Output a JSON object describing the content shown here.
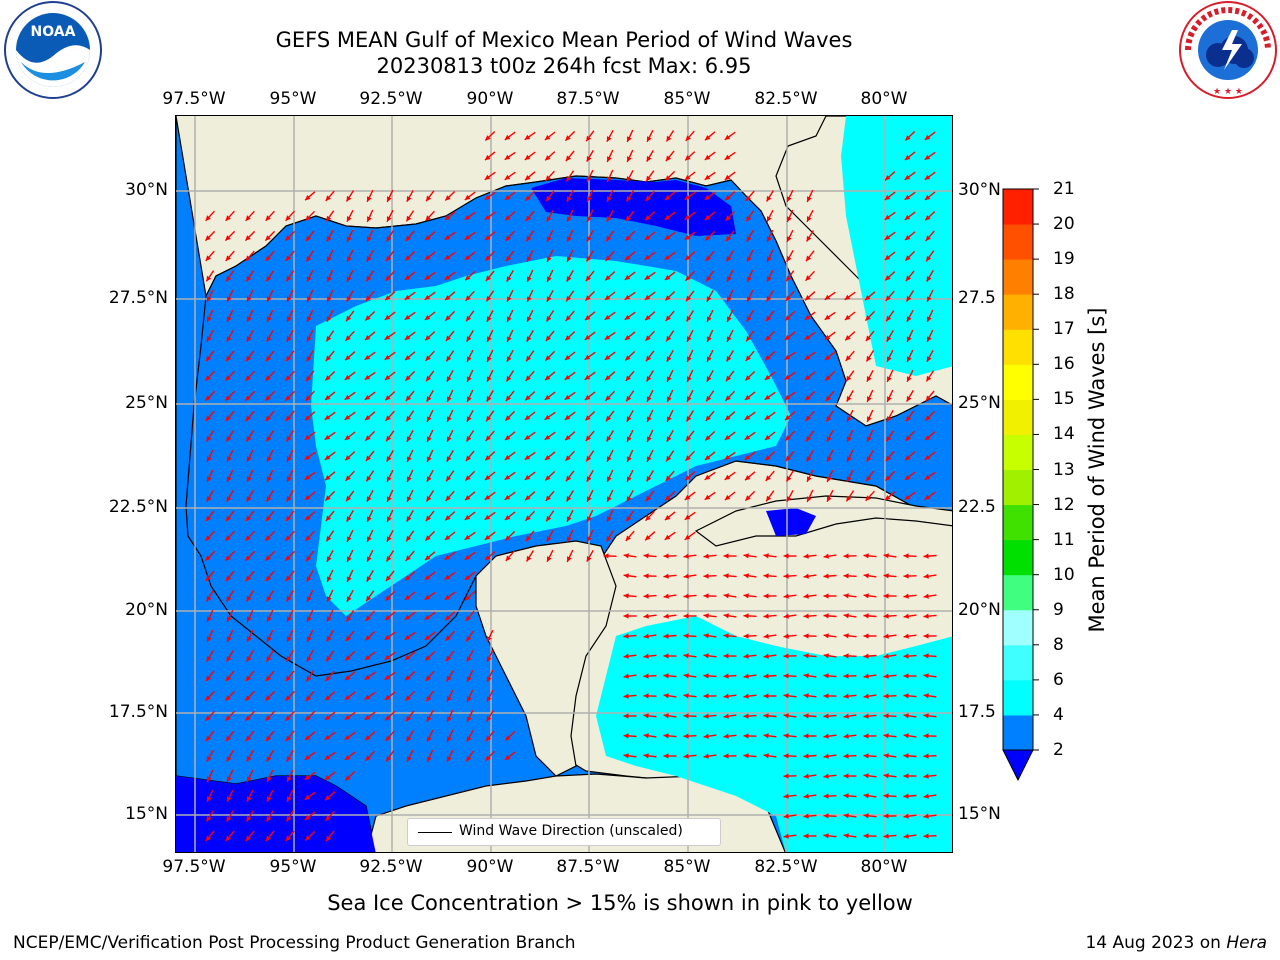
{
  "header": {
    "title_line1": "GEFS MEAN Gulf of Mexico Mean Period of Wind Waves",
    "title_line2": "20230813 t00z 264h fcst   Max: 6.95"
  },
  "logos": {
    "left": {
      "icon": "noaa-logo",
      "text": "NOAA",
      "ring_text": "NATIONAL OCEANIC AND ATMOSPHERIC ADMINISTRATION"
    },
    "right": {
      "icon": "nws-logo",
      "ring_text": "NATIONAL WEATHER SERVICE"
    }
  },
  "map": {
    "lon_labels": [
      "97.5°W",
      "95°W",
      "92.5°W",
      "90°W",
      "87.5°W",
      "85°W",
      "82.5°W",
      "80°W"
    ],
    "lat_labels_left": [
      "30°N",
      "27.5°N",
      "25°N",
      "22.5°N",
      "20°N",
      "17.5°N",
      "15°N"
    ],
    "lat_labels_right": [
      "30°N",
      "27.5",
      "25°N",
      "22.5",
      "20°N",
      "17.5",
      "15°N"
    ],
    "legend_label": "Wind Wave Direction (unscaled)",
    "colors": {
      "land": "#efeedb",
      "coast": "#000000",
      "grid": "#b0b0b0",
      "arrow": "#ff0000",
      "deep": "#0000ff",
      "mid": "#0080ff",
      "light": "#00ffff"
    }
  },
  "colorbar": {
    "label": "Mean Period of Wind Waves [s]",
    "ticks": [
      "2",
      "4",
      "6",
      "8",
      "9",
      "10",
      "11",
      "12",
      "13",
      "14",
      "15",
      "16",
      "17",
      "18",
      "19",
      "20",
      "21"
    ],
    "under_color": "#0000ff",
    "colors": [
      "#0080ff",
      "#00ffff",
      "#40ffff",
      "#a0ffff",
      "#40ff80",
      "#00e000",
      "#40e000",
      "#a0f000",
      "#c8ff00",
      "#f0f000",
      "#ffff00",
      "#ffe000",
      "#ffb000",
      "#ff8000",
      "#ff5000",
      "#ff2000",
      "#ff0000"
    ]
  },
  "subtitle": "Sea Ice Concentration > 15% is shown in pink to yellow",
  "footer": {
    "left": "NCEP/EMC/Verification Post Processing Product Generation Branch",
    "right_prefix": "14 Aug 2023 on ",
    "right_em": "Hera"
  }
}
